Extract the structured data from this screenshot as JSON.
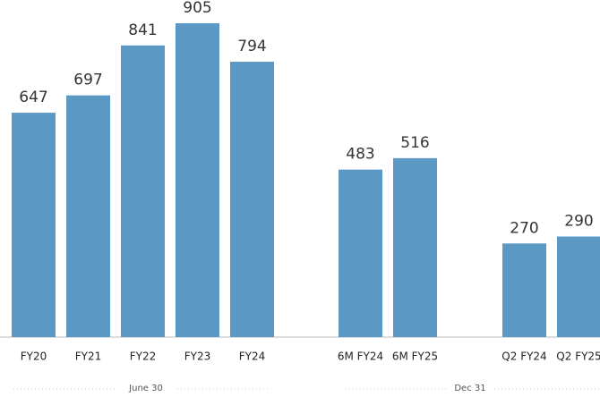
{
  "chart_data": {
    "type": "bar",
    "color": "#5b98c4",
    "groups": [
      {
        "label": "June 30",
        "categories": [
          "FY20",
          "FY21",
          "FY22",
          "FY23",
          "FY24"
        ],
        "values": [
          647,
          697,
          841,
          905,
          794
        ]
      },
      {
        "label": "Dec 31",
        "categories": [
          "6M FY24",
          "6M FY25",
          "Q2 FY24",
          "Q2 FY25"
        ],
        "values": [
          483,
          516,
          270,
          290
        ]
      }
    ]
  }
}
